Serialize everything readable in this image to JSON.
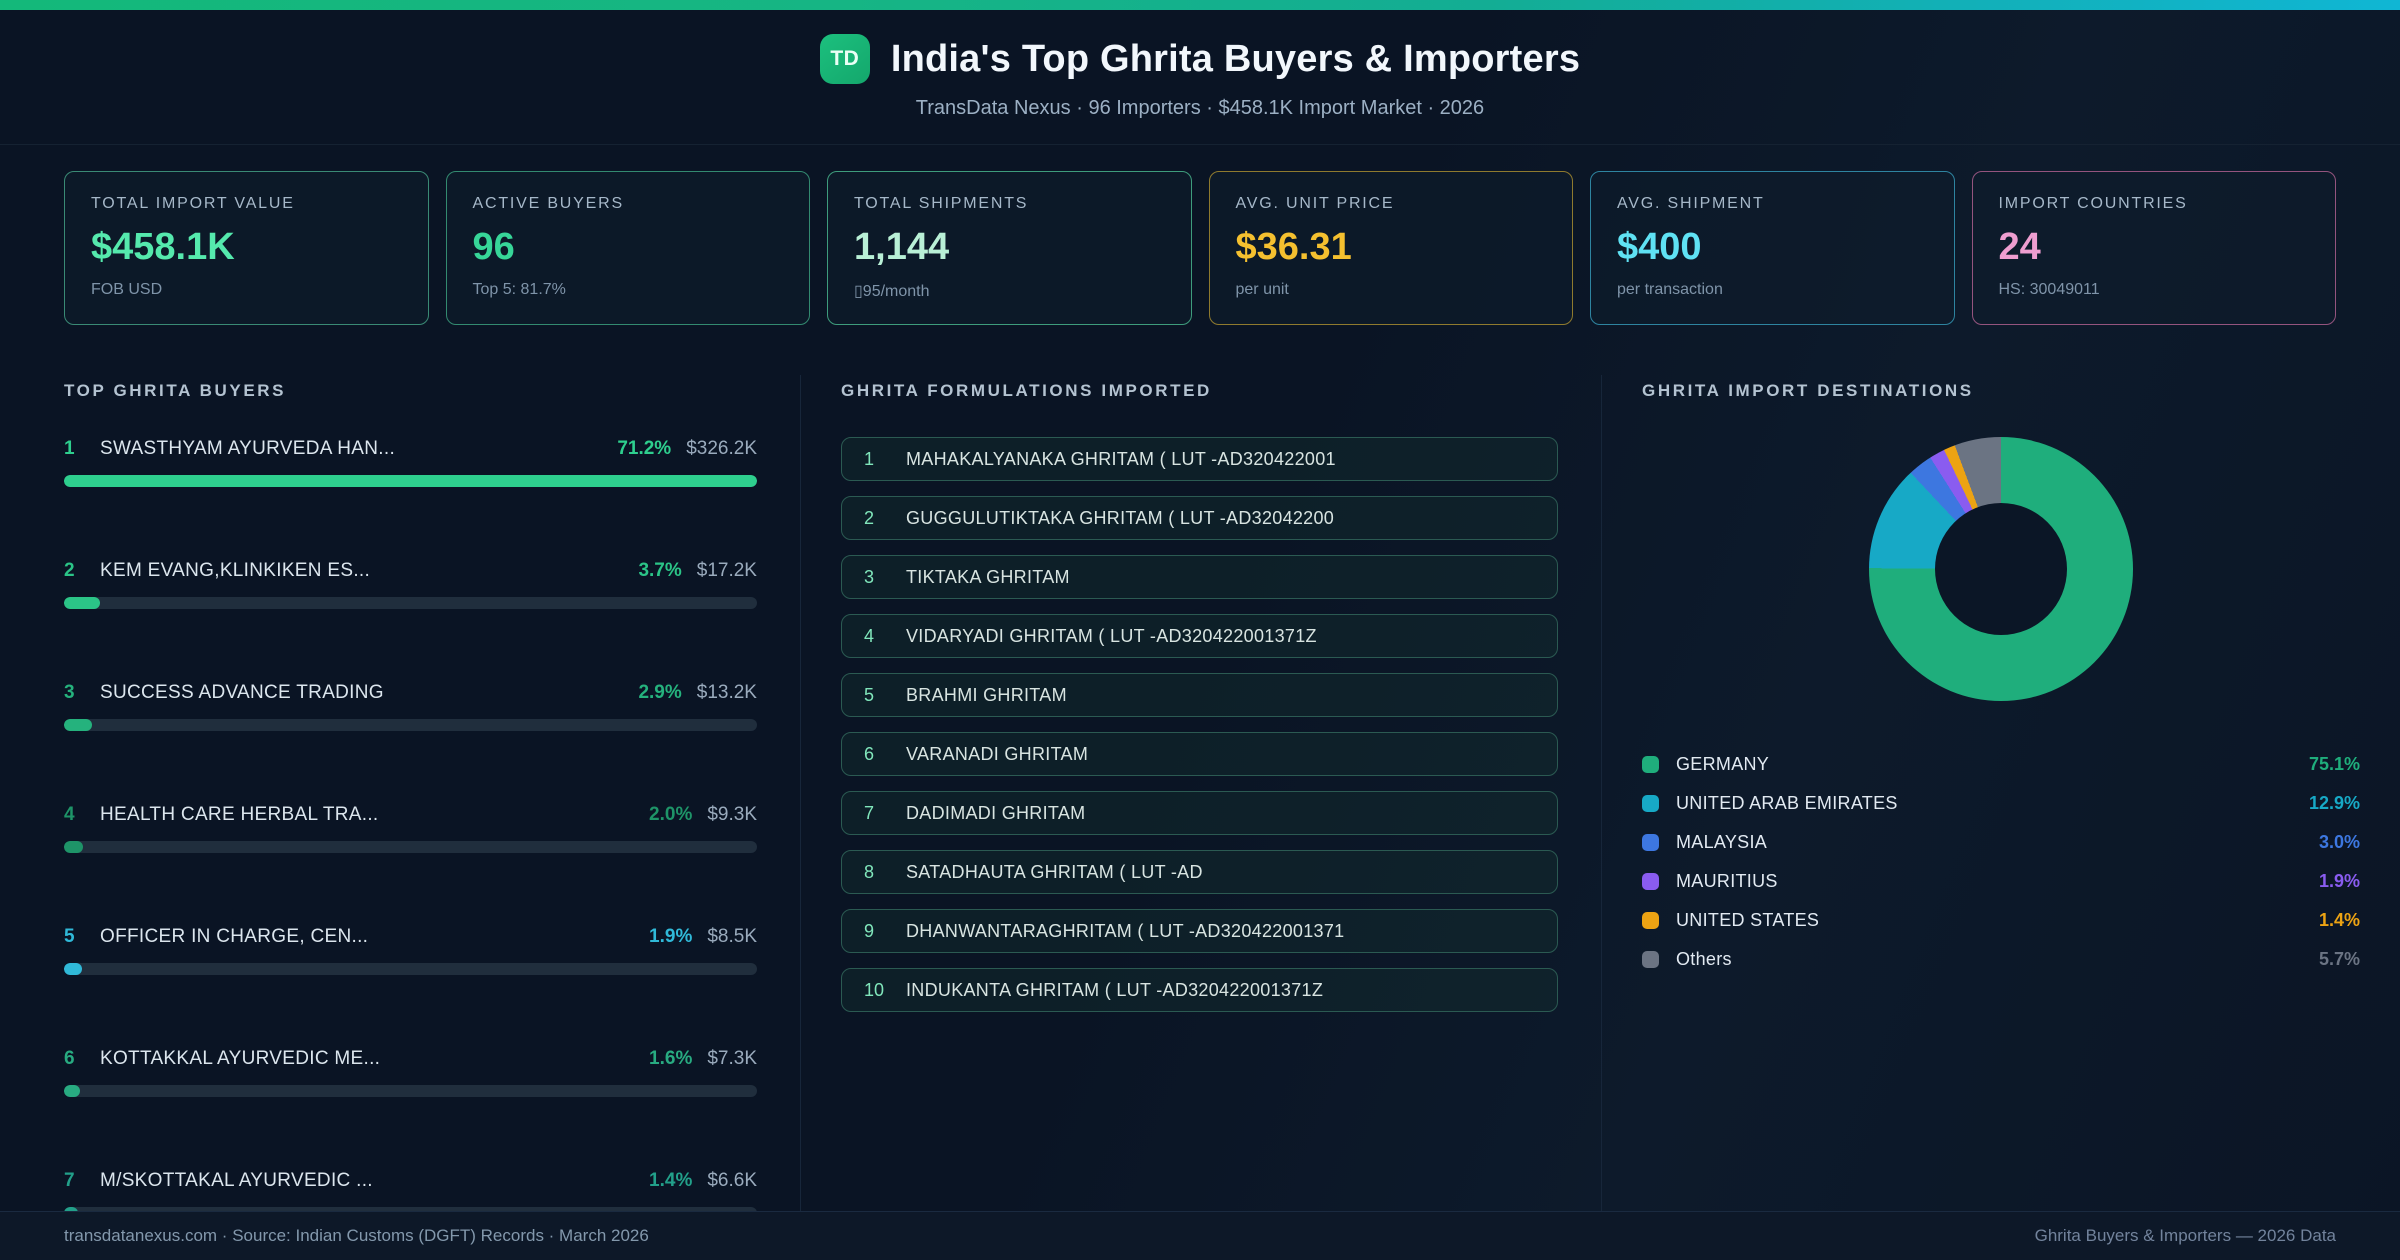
{
  "brand": {
    "logo": "TD",
    "title": "India's Top Ghrita Buyers & Importers",
    "subtitle": "TransData Nexus · 96 Importers · $458.1K Import Market · 2026"
  },
  "stats": [
    {
      "label": "TOTAL IMPORT VALUE",
      "value": "$458.1K",
      "sub": "FOB USD",
      "accent": "#55e9ad",
      "border": "#3a8a75"
    },
    {
      "label": "ACTIVE BUYERS",
      "value": "96",
      "sub": "Top 5: 81.7%",
      "accent": "#37d698",
      "border": "#338a70"
    },
    {
      "label": "TOTAL SHIPMENTS",
      "value": "1,144",
      "sub": "▯95/month",
      "accent": "#b9f0d6",
      "border": "#3e9c7c"
    },
    {
      "label": "AVG. UNIT PRICE",
      "value": "$36.31",
      "sub": "per unit",
      "accent": "#f5c02f",
      "border": "#8f7a2e"
    },
    {
      "label": "AVG. SHIPMENT",
      "value": "$400",
      "sub": "per transaction",
      "accent": "#5fe2f4",
      "border": "#2e84a0"
    },
    {
      "label": "IMPORT COUNTRIES",
      "value": "24",
      "sub": "HS: 30049011",
      "accent": "#ee9ed0",
      "border": "#94547e"
    }
  ],
  "buyers": {
    "title": "TOP GHRITA BUYERS",
    "items": [
      {
        "rank": "1",
        "name": "SWASTHYAM AYURVEDA HAN...",
        "pct": "71.2%",
        "value": "$326.2K",
        "color": "#2ecf8e"
      },
      {
        "rank": "2",
        "name": "KEM EVANG,KLINKIKEN ES...",
        "pct": "3.7%",
        "value": "$17.2K",
        "color": "#2bc487"
      },
      {
        "rank": "3",
        "name": "SUCCESS ADVANCE TRADING",
        "pct": "2.9%",
        "value": "$13.2K",
        "color": "#25b27d"
      },
      {
        "rank": "4",
        "name": "HEALTH CARE HERBAL TRA...",
        "pct": "2.0%",
        "value": "$9.3K",
        "color": "#1e9468"
      },
      {
        "rank": "5",
        "name": "OFFICER IN CHARGE, CEN...",
        "pct": "1.9%",
        "value": "$8.5K",
        "color": "#30b9d8"
      },
      {
        "rank": "6",
        "name": "KOTTAKKAL AYURVEDIC ME...",
        "pct": "1.6%",
        "value": "$7.3K",
        "color": "#28ab81"
      },
      {
        "rank": "7",
        "name": "M/SKOTTAKAL AYURVEDIC ...",
        "pct": "1.4%",
        "value": "$6.6K",
        "color": "#22a08a"
      }
    ]
  },
  "formulations": {
    "title": "GHRITA FORMULATIONS IMPORTED",
    "items": [
      "MAHAKALYANAKA GHRITAM ( LUT -AD320422001",
      "GUGGULUTIKTAKA GHRITAM ( LUT -AD32042200",
      "TIKTAKA GHRITAM",
      "VIDARYADI GHRITAM ( LUT -AD320422001371Z",
      "BRAHMI GHRITAM",
      "VARANADI GHRITAM",
      "DADIMADI GHRITAM",
      "SATADHAUTA  GHRITAM ( LUT -AD",
      "DHANWANTARAGHRITAM  ( LUT -AD320422001371",
      "INDUKANTA GHRITAM ( LUT -AD320422001371Z"
    ]
  },
  "chart_data": [
    {
      "type": "pie",
      "title": "GHRITA IMPORT DESTINATIONS",
      "categories": [
        "GERMANY",
        "UNITED ARAB EMIRATES",
        "MALAYSIA",
        "MAURITIUS",
        "UNITED STATES",
        "Others"
      ],
      "values": [
        75.1,
        12.9,
        3.0,
        1.9,
        1.4,
        5.7
      ],
      "labels": [
        "75.1%",
        "12.9%",
        "3.0%",
        "1.9%",
        "1.4%",
        "5.7%"
      ],
      "colors": [
        "#1fae7c",
        "#17a9c6",
        "#3d77e0",
        "#8a5cf0",
        "#eda313",
        "#6b7483"
      ],
      "donut": true,
      "hole_ratio": 0.5,
      "start_angle_deg": 0,
      "direction": "clockwise",
      "legend_position": "bottom"
    },
    {
      "type": "bar",
      "title": "TOP GHRITA BUYERS",
      "orientation": "horizontal",
      "categories": [
        "SWASTHYAM AYURVEDA HAN...",
        "KEM EVANG,KLINKIKEN ES...",
        "SUCCESS ADVANCE TRADING",
        "HEALTH CARE HERBAL TRA...",
        "OFFICER IN CHARGE, CEN...",
        "KOTTAKKAL AYURVEDIC ME...",
        "M/SKOTTAKAL AYURVEDIC ..."
      ],
      "values": [
        71.2,
        3.7,
        2.9,
        2.0,
        1.9,
        1.6,
        1.4
      ],
      "value_labels": [
        "$326.2K",
        "$17.2K",
        "$13.2K",
        "$9.3K",
        "$8.5K",
        "$7.3K",
        "$6.6K"
      ],
      "xlim": [
        0,
        71.2
      ]
    }
  ],
  "footer": {
    "left": "transdatanexus.com · Source: Indian Customs (DGFT) Records · March 2026",
    "right": "Ghrita Buyers & Importers — 2026 Data"
  }
}
